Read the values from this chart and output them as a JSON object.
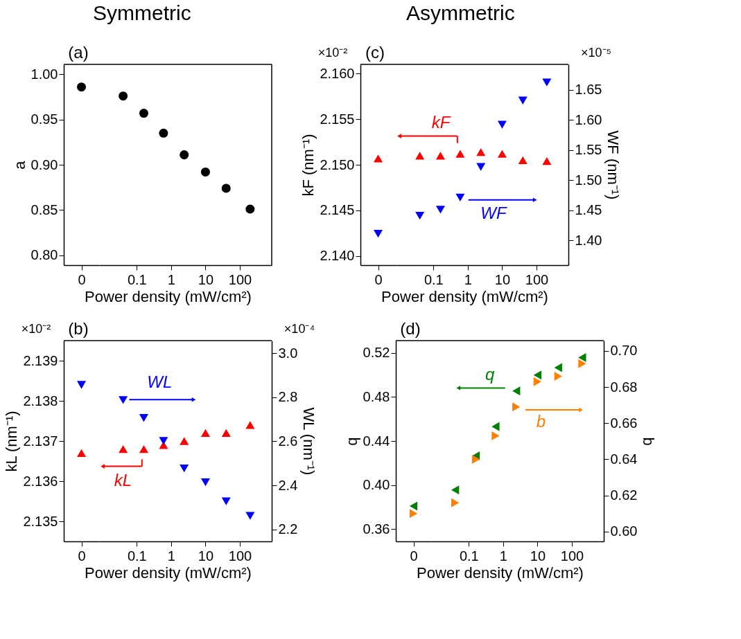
{
  "chart_data": [
    {
      "type": "scatter",
      "ylabel": "a",
      "categories": [
        "0"
      ],
      "ylim": [
        0.789,
        1.011
      ],
      "yticks": [
        {
          "value": 0.8,
          "label": "0.80"
        },
        {
          "value": 0.85,
          "label": "0.85"
        },
        {
          "value": 0.9,
          "label": "0.90"
        },
        {
          "value": 0.95,
          "label": "0.95"
        },
        {
          "value": 1.0,
          "label": "1.00"
        }
      ],
      "annotations": [
        "(a)"
      ],
      "series": [
        {
          "color": "#000000",
          "marker": "circle",
          "values": [
            0.986
          ]
        }
      ]
    },
    {
      "type": "scatter",
      "title": "Symmetric",
      "xlabel": "Power density (mW/cm²)",
      "log": "x",
      "x": [
        0.04,
        0.16,
        0.6,
        2.4,
        10,
        40,
        200
      ],
      "xlim": [
        0.008,
        850
      ],
      "xticks": [
        0.1,
        1,
        10,
        100
      ],
      "ylim": [
        0.789,
        1.011
      ],
      "series": [
        {
          "color": "#000000",
          "marker": "circle",
          "values": [
            0.976,
            0.957,
            0.935,
            0.911,
            0.892,
            0.874,
            0.851
          ]
        }
      ]
    },
    {
      "type": "scatter",
      "ylabel": "kF (nm⁻¹)",
      "categories": [
        "0"
      ],
      "ylim": [
        2.139,
        2.161
      ],
      "yticks": [
        {
          "value": 2.14,
          "label": "2.140"
        },
        {
          "value": 2.145,
          "label": "2.145"
        },
        {
          "value": 2.15,
          "label": "2.150"
        },
        {
          "value": 2.155,
          "label": "2.155"
        },
        {
          "value": 2.16,
          "label": "2.160"
        }
      ],
      "y2lim": [
        1.359,
        1.692
      ],
      "annotations": [
        "(c)",
        "×10⁻²"
      ],
      "series": [
        {
          "color": "#ff0000",
          "marker": "triangle",
          "values": [
            2.1507
          ]
        },
        {
          "color": "#0000ff",
          "marker": "triangle-down",
          "axis": "y2",
          "values": [
            1.411
          ]
        }
      ]
    },
    {
      "type": "scatter",
      "title": "Asymmetric",
      "xlabel": "Power density (mW/cm²)",
      "y2label": "WF (nm⁻¹)",
      "log": "x",
      "x": [
        0.04,
        0.16,
        0.6,
        2.4,
        10,
        40,
        200
      ],
      "xlim": [
        0.008,
        850
      ],
      "xticks": [
        0.1,
        1,
        10,
        100
      ],
      "ylim": [
        2.139,
        2.161
      ],
      "y2lim": [
        1.359,
        1.692
      ],
      "y2ticks": [
        {
          "value": 1.4,
          "label": "1.40"
        },
        {
          "value": 1.45,
          "label": "1.45"
        },
        {
          "value": 1.5,
          "label": "1.50"
        },
        {
          "value": 1.55,
          "label": "1.55"
        },
        {
          "value": 1.6,
          "label": "1.60"
        },
        {
          "value": 1.65,
          "label": "1.65"
        }
      ],
      "annotations": [
        "×10⁻⁵"
      ],
      "series": [
        {
          "name": "kF",
          "color": "#ff0000",
          "marker": "triangle",
          "values": [
            2.151,
            2.151,
            2.1512,
            2.1514,
            2.1512,
            2.1505,
            2.1504
          ]
        },
        {
          "name": "WF",
          "color": "#0000ff",
          "marker": "triangle-down",
          "axis": "y2",
          "values": [
            1.441,
            1.451,
            1.471,
            1.522,
            1.592,
            1.632,
            1.662
          ]
        }
      ]
    },
    {
      "type": "scatter",
      "ylabel": "kL (nm⁻¹)",
      "categories": [
        "0"
      ],
      "ylim": [
        2.1345,
        2.1395
      ],
      "yticks": [
        {
          "value": 2.135,
          "label": "2.135"
        },
        {
          "value": 2.136,
          "label": "2.136"
        },
        {
          "value": 2.137,
          "label": "2.137"
        },
        {
          "value": 2.138,
          "label": "2.138"
        },
        {
          "value": 2.139,
          "label": "2.139"
        }
      ],
      "y2lim": [
        2.146,
        3.057
      ],
      "annotations": [
        "(b)",
        "×10⁻²"
      ],
      "series": [
        {
          "color": "#ff0000",
          "marker": "triangle",
          "values": [
            2.1367
          ]
        },
        {
          "color": "#0000ff",
          "marker": "triangle-down",
          "axis": "y2",
          "values": [
            2.856
          ]
        }
      ]
    },
    {
      "type": "scatter",
      "xlabel": "Power density (mW/cm²)",
      "y2label": "WL (nm⁻¹)",
      "log": "x",
      "x": [
        0.04,
        0.16,
        0.6,
        2.4,
        10,
        40,
        200
      ],
      "xlim": [
        0.008,
        850
      ],
      "xticks": [
        0.1,
        1,
        10,
        100
      ],
      "ylim": [
        2.1345,
        2.1395
      ],
      "y2lim": [
        2.146,
        3.057
      ],
      "y2ticks": [
        2.2,
        2.4,
        2.6,
        2.8,
        {
          "value": 3.0,
          "label": "3.0"
        }
      ],
      "annotations": [
        "×10⁻⁴"
      ],
      "series": [
        {
          "name": "kL",
          "color": "#ff0000",
          "marker": "triangle",
          "values": [
            2.1368,
            2.1368,
            2.1369,
            2.137,
            2.1372,
            2.1372,
            2.1374
          ]
        },
        {
          "name": "WL",
          "color": "#0000ff",
          "marker": "triangle-down",
          "axis": "y2",
          "values": [
            2.787,
            2.706,
            2.602,
            2.477,
            2.414,
            2.328,
            2.262
          ]
        }
      ]
    },
    {
      "type": "scatter",
      "ylabel": "q",
      "categories": [
        "0"
      ],
      "ylim": [
        0.349,
        0.531
      ],
      "yticks": [
        0.36,
        {
          "value": 0.4,
          "label": "0.40"
        },
        0.44,
        0.48,
        0.52
      ],
      "y2lim": [
        0.5946,
        0.7057
      ],
      "annotations": [
        "(d)"
      ],
      "series": [
        {
          "color": "#008000",
          "marker": "triangle-left",
          "values": [
            0.381
          ]
        },
        {
          "color": "#ff8000",
          "marker": "triangle-right",
          "axis": "y2",
          "values": [
            0.61
          ]
        }
      ]
    },
    {
      "type": "scatter",
      "xlabel": "Power density (mW/cm²)",
      "y2label": "b",
      "log": "x",
      "x": [
        0.04,
        0.16,
        0.6,
        2.4,
        10,
        40,
        200
      ],
      "xlim": [
        0.008,
        850
      ],
      "xticks": [
        0.1,
        1,
        10,
        100
      ],
      "ylim": [
        0.349,
        0.531
      ],
      "y2lim": [
        0.5946,
        0.7057
      ],
      "y2ticks": [
        {
          "value": 0.6,
          "label": "0.60"
        },
        0.62,
        0.64,
        0.66,
        0.68,
        {
          "value": 0.7,
          "label": "0.70"
        }
      ],
      "series": [
        {
          "name": "q",
          "color": "#008000",
          "marker": "triangle-left",
          "values": [
            0.3956,
            0.4265,
            0.4531,
            0.4853,
            0.4998,
            0.5065,
            0.5156
          ]
        },
        {
          "name": "b",
          "color": "#ff8000",
          "marker": "triangle-right",
          "axis": "y2",
          "values": [
            0.616,
            0.64,
            0.653,
            0.669,
            0.683,
            0.686,
            0.693
          ]
        }
      ]
    }
  ]
}
